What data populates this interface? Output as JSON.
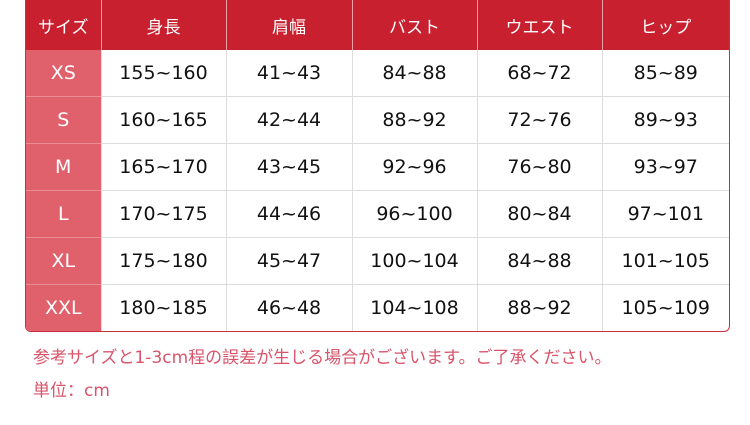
{
  "colors": {
    "header": "#c8202f",
    "size_column": "#e0606c",
    "note_text": "#d9546a"
  },
  "table": {
    "headers": [
      "サイズ",
      "身長",
      "肩幅",
      "バスト",
      "ウエスト",
      "ヒップ"
    ],
    "rows": [
      [
        "XS",
        "155~160",
        "41~43",
        "84~88",
        "68~72",
        "85~89"
      ],
      [
        "S",
        "160~165",
        "42~44",
        "88~92",
        "72~76",
        "89~93"
      ],
      [
        "M",
        "165~170",
        "43~45",
        "92~96",
        "76~80",
        "93~97"
      ],
      [
        "L",
        "170~175",
        "44~46",
        "96~100",
        "80~84",
        "97~101"
      ],
      [
        "XL",
        "175~180",
        "45~47",
        "100~104",
        "84~88",
        "101~105"
      ],
      [
        "XXL",
        "180~185",
        "46~48",
        "104~108",
        "88~92",
        "105~109"
      ]
    ]
  },
  "notes": {
    "disclaimer": "参考サイズと1-3cm程の誤差が生じる場合がございます。ご了承ください。",
    "unit": "単位：cm"
  }
}
